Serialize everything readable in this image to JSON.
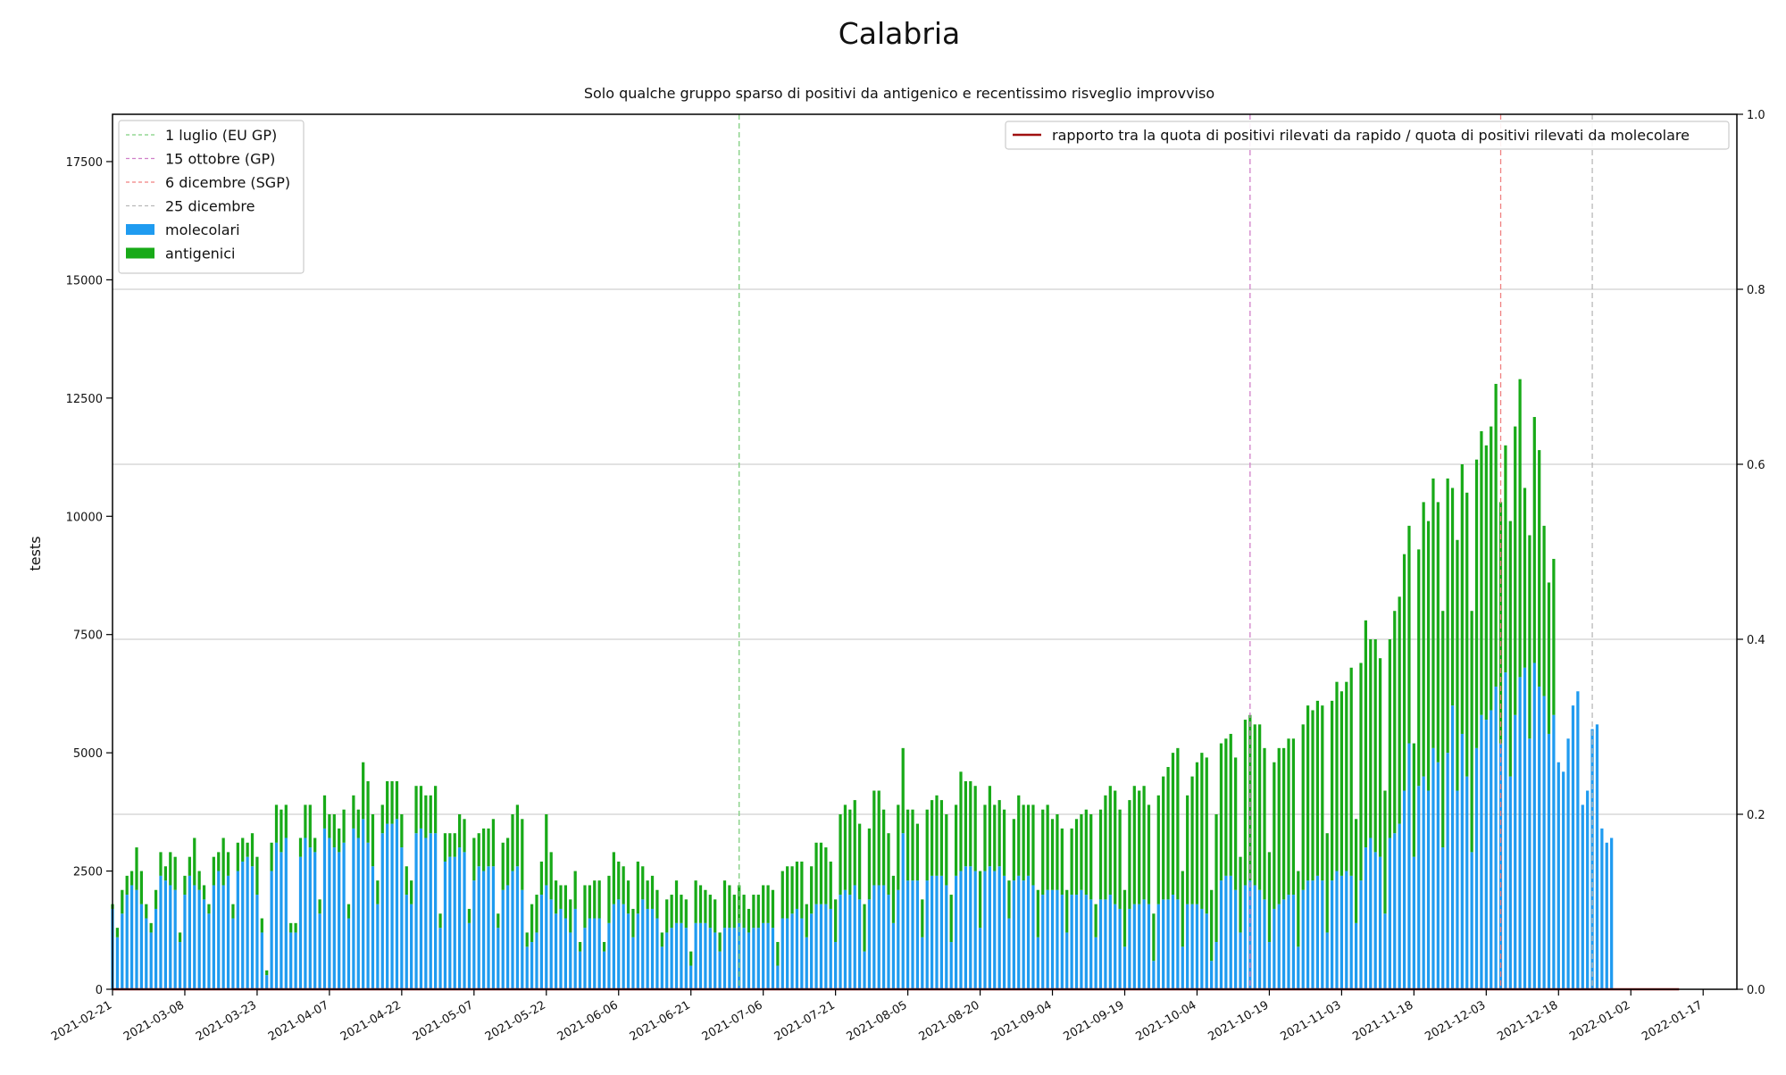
{
  "chart_data": {
    "type": "bar",
    "title": "Calabria",
    "subtitle": "Solo qualche gruppo sparso di positivi da antigenico e recentissimo risveglio improvviso",
    "ylabel": "tests",
    "ylim": [
      0,
      18500
    ],
    "y2lim": [
      0,
      1.0
    ],
    "yticks": [
      "0",
      "2500",
      "5000",
      "7500",
      "10000",
      "12500",
      "15000",
      "17500"
    ],
    "y2ticks": [
      "0.0",
      "0.2",
      "0.4",
      "0.6",
      "0.8",
      "1.0"
    ],
    "x_start": "2021-02-21",
    "x_end": "2022-01-24",
    "xticks": [
      "2021-02-21",
      "2021-03-08",
      "2021-03-23",
      "2021-04-07",
      "2021-04-22",
      "2021-05-07",
      "2021-05-22",
      "2021-06-06",
      "2021-06-21",
      "2021-07-06",
      "2021-07-21",
      "2021-08-05",
      "2021-08-20",
      "2021-09-04",
      "2021-09-19",
      "2021-10-04",
      "2021-10-19",
      "2021-11-03",
      "2021-11-18",
      "2021-12-03",
      "2021-12-18",
      "2022-01-02",
      "2022-01-17"
    ],
    "grid": "horizontal (right axis)",
    "legend_left_placement": "top-left",
    "legend_right_placement": "top-right",
    "vlines": [
      {
        "label": "1 luglio (EU GP)",
        "date": "2021-07-01",
        "color": "#7fcf7f"
      },
      {
        "label": "15 ottobre (GP)",
        "date": "2021-10-15",
        "color": "#d07fc8"
      },
      {
        "label": "6 dicembre (SGP)",
        "date": "2021-12-06",
        "color": "#f08080"
      },
      {
        "label": "25 dicembre",
        "date": "2021-12-25",
        "color": "#b8b8b8"
      }
    ],
    "series": [
      {
        "name": "molecolari",
        "color": "#1f9bf0",
        "kind": "bar",
        "values": [
          1700,
          1100,
          1600,
          2000,
          2200,
          2100,
          1800,
          1500,
          1200,
          1700,
          2400,
          2300,
          2200,
          2100,
          1000,
          2000,
          2400,
          2200,
          2100,
          1900,
          1600,
          2200,
          2500,
          2200,
          2400,
          1500,
          2500,
          2700,
          2800,
          2600,
          2000,
          1200,
          300,
          2500,
          3100,
          2900,
          3200,
          1200,
          1200,
          2800,
          3200,
          3000,
          2900,
          1600,
          3400,
          3200,
          3000,
          2900,
          3100,
          1500,
          3400,
          3200,
          3600,
          3100,
          2600,
          1800,
          3300,
          3500,
          3500,
          3600,
          3000,
          2000,
          1800,
          3300,
          3400,
          3200,
          3300,
          3300,
          1300,
          2700,
          2800,
          2800,
          3000,
          2900,
          1400,
          2300,
          2600,
          2500,
          2600,
          2600,
          1300,
          2100,
          2200,
          2500,
          2600,
          2100,
          900,
          1000,
          1200,
          2000,
          2200,
          1900,
          1600,
          1700,
          1500,
          1200,
          1700,
          800,
          1300,
          1500,
          1500,
          1500,
          800,
          1400,
          1800,
          1900,
          1800,
          1600,
          1100,
          1600,
          1900,
          1700,
          1700,
          1500,
          900,
          1200,
          1300,
          1400,
          1400,
          1300,
          500,
          1400,
          1400,
          1400,
          1300,
          1200,
          800,
          1300,
          1300,
          1300,
          1400,
          1300,
          1200,
          1300,
          1300,
          1400,
          1400,
          1300,
          500,
          1500,
          1500,
          1600,
          1700,
          1500,
          1100,
          1600,
          1800,
          1800,
          1800,
          1700,
          1000,
          2000,
          2100,
          2000,
          2200,
          1900,
          800,
          1900,
          2200,
          2200,
          2200,
          2000,
          1400,
          2100,
          3300,
          2300,
          2300,
          2300,
          1100,
          2300,
          2400,
          2400,
          2400,
          2200,
          1000,
          2400,
          2500,
          2600,
          2600,
          2500,
          1300,
          2500,
          2600,
          2500,
          2600,
          2400,
          1500,
          2300,
          2400,
          2300,
          2400,
          2200,
          1100,
          2000,
          2100,
          2100,
          2100,
          2000,
          1200,
          2000,
          2000,
          2100,
          2000,
          1900,
          1100,
          1900,
          1900,
          2000,
          1800,
          1700,
          900,
          1700,
          1800,
          1800,
          1900,
          1800,
          600,
          1800,
          1900,
          1900,
          2000,
          1900,
          900,
          1800,
          1800,
          1800,
          1700,
          1600,
          600,
          1000,
          2300,
          2400,
          2400,
          2100,
          1200,
          2200,
          2300,
          2200,
          2100,
          1900,
          1000,
          1700,
          1800,
          1900,
          2000,
          2000,
          900,
          2100,
          2300,
          2300,
          2400,
          2300,
          1200,
          2300,
          2500,
          2400,
          2500,
          2400,
          1400,
          2300,
          3000,
          3200,
          2900,
          2800,
          1600,
          3200,
          3300,
          3500,
          4200,
          5200,
          2800,
          4300,
          4500,
          4200,
          5100,
          4800,
          3000,
          5000,
          6000,
          4200,
          5400,
          4500,
          2900,
          5100,
          5800,
          5700,
          5900,
          6400,
          5200,
          6700,
          4500,
          5800,
          6600,
          6800,
          5300,
          6900,
          6400,
          6200,
          5400,
          5800,
          4800,
          4600,
          5300,
          6000,
          6300,
          3900,
          4200,
          5500,
          5600,
          3400,
          3100,
          3200
        ]
      },
      {
        "name": "antigenici",
        "color": "#18aa18",
        "kind": "bar",
        "values": [
          100,
          200,
          500,
          400,
          300,
          900,
          700,
          300,
          200,
          400,
          500,
          300,
          700,
          700,
          200,
          400,
          400,
          1000,
          400,
          300,
          200,
          600,
          400,
          1000,
          500,
          300,
          600,
          500,
          300,
          700,
          800,
          300,
          100,
          600,
          800,
          900,
          700,
          200,
          200,
          400,
          700,
          900,
          300,
          300,
          700,
          500,
          700,
          500,
          700,
          300,
          700,
          600,
          1200,
          1300,
          1100,
          500,
          600,
          900,
          900,
          800,
          700,
          600,
          500,
          1000,
          900,
          900,
          800,
          1000,
          300,
          600,
          500,
          500,
          700,
          700,
          300,
          900,
          700,
          900,
          800,
          1000,
          300,
          1000,
          1000,
          1200,
          1300,
          1500,
          300,
          800,
          800,
          700,
          1500,
          1000,
          700,
          500,
          700,
          700,
          800,
          200,
          900,
          700,
          800,
          800,
          200,
          1000,
          1100,
          800,
          800,
          700,
          600,
          1100,
          700,
          600,
          700,
          600,
          300,
          700,
          700,
          900,
          600,
          600,
          300,
          900,
          800,
          700,
          700,
          700,
          400,
          1000,
          900,
          700,
          800,
          700,
          500,
          700,
          700,
          800,
          800,
          800,
          500,
          1000,
          1100,
          1000,
          1000,
          1200,
          700,
          1000,
          1300,
          1300,
          1200,
          1000,
          900,
          1700,
          1800,
          1800,
          1800,
          1600,
          1000,
          1500,
          2000,
          2000,
          1600,
          1300,
          1000,
          1800,
          1800,
          1500,
          1500,
          1200,
          800,
          1500,
          1600,
          1700,
          1600,
          1500,
          1000,
          1500,
          2100,
          1800,
          1800,
          1800,
          1200,
          1400,
          1700,
          1400,
          1400,
          1400,
          800,
          1300,
          1700,
          1600,
          1500,
          1700,
          1000,
          1800,
          1800,
          1500,
          1600,
          1400,
          900,
          1400,
          1600,
          1600,
          1800,
          1800,
          700,
          1900,
          2200,
          2300,
          2400,
          2100,
          1200,
          2300,
          2500,
          2400,
          2400,
          2100,
          1000,
          2300,
          2600,
          2800,
          3000,
          3200,
          1600,
          2300,
          2700,
          3000,
          3300,
          3300,
          1500,
          2700,
          2900,
          2900,
          3000,
          2800,
          1600,
          3500,
          3500,
          3400,
          3500,
          3200,
          1900,
          3100,
          3300,
          3200,
          3300,
          3300,
          1600,
          3500,
          3700,
          3600,
          3700,
          3700,
          2100,
          3800,
          4000,
          3900,
          4000,
          4400,
          2200,
          4600,
          4800,
          4200,
          4500,
          4200,
          2600,
          4200,
          4700,
          4800,
          5000,
          4600,
          2400,
          5000,
          5800,
          5700,
          5700,
          5500,
          5000,
          5800,
          4600,
          5300,
          5700,
          6000,
          5100,
          6100,
          6000,
          5800,
          6000,
          6400,
          5100,
          4800,
          5400,
          6100,
          6300,
          3800,
          4300,
          5200,
          5000,
          3600,
          3200,
          3300
        ]
      },
      {
        "name": "rapporto tra la quota di positivi rilevati da rapido / quota di positivi rilevati da molecolare",
        "color": "#a01010",
        "kind": "line",
        "values": [
          0,
          0,
          0,
          0,
          0,
          0,
          0,
          0,
          0,
          0,
          0,
          0,
          0,
          0,
          0,
          0,
          0,
          0,
          0,
          0,
          0,
          0,
          0,
          0,
          0,
          0,
          0,
          0,
          0,
          0,
          0,
          0,
          0,
          0,
          0,
          0,
          0,
          0,
          0,
          0,
          0,
          0,
          0,
          0,
          0,
          0,
          0,
          0,
          0,
          0,
          0,
          0,
          0,
          0,
          0,
          0,
          0,
          0,
          0,
          0,
          0,
          0,
          0,
          0,
          0,
          0,
          0,
          0,
          0,
          0,
          0,
          0,
          0,
          0,
          0,
          0,
          0,
          0,
          0,
          0,
          0,
          0,
          0,
          0,
          0,
          0,
          0,
          0,
          0,
          0,
          0,
          0,
          0,
          0,
          0,
          0,
          0,
          0,
          0,
          0,
          0,
          0,
          0,
          0,
          0,
          0,
          0,
          0,
          0,
          0,
          0,
          0,
          0,
          0,
          0,
          0,
          0,
          0,
          0,
          0,
          0,
          0,
          0,
          0,
          0,
          0,
          0,
          0,
          0,
          0,
          0,
          0,
          0,
          0,
          0,
          0,
          0,
          0,
          0,
          0,
          0,
          0,
          0,
          0,
          0,
          0,
          0,
          0,
          0,
          0,
          0,
          0,
          0,
          0,
          0,
          0,
          0,
          0,
          0,
          0,
          0,
          0,
          0,
          0,
          0,
          0,
          0,
          0,
          0,
          0,
          0,
          0,
          0,
          0,
          0,
          0,
          0,
          0,
          0,
          0,
          0,
          0,
          0,
          0,
          0,
          0,
          0,
          0,
          0,
          0,
          0,
          0,
          0,
          0,
          0,
          0,
          0,
          0,
          0,
          0,
          0,
          0,
          0,
          0,
          0,
          0,
          0,
          0,
          0,
          0,
          0,
          0,
          0,
          0,
          0,
          0,
          0,
          0,
          0,
          0,
          0,
          0,
          0,
          0,
          0,
          0,
          0,
          0,
          0,
          0,
          0,
          0,
          0,
          0,
          0,
          0,
          0,
          0,
          0,
          0,
          0,
          0,
          0,
          0,
          0,
          0,
          0,
          0,
          0,
          0,
          0,
          0,
          0,
          0,
          0,
          0,
          0,
          0,
          0,
          0,
          0,
          0,
          0,
          0,
          0,
          0,
          0,
          0,
          0,
          0,
          0,
          0,
          0,
          0,
          0,
          0,
          0,
          0,
          0,
          0,
          0,
          0,
          0,
          0,
          0,
          0,
          0,
          0,
          0,
          0,
          0,
          0,
          0,
          0,
          0,
          0,
          0,
          0,
          0,
          0,
          0,
          0,
          0,
          0,
          0,
          0,
          0,
          0,
          0,
          0,
          0,
          0,
          0,
          0,
          0,
          0,
          0,
          0,
          0,
          0,
          0,
          0,
          0,
          0,
          0,
          0
        ]
      }
    ]
  }
}
